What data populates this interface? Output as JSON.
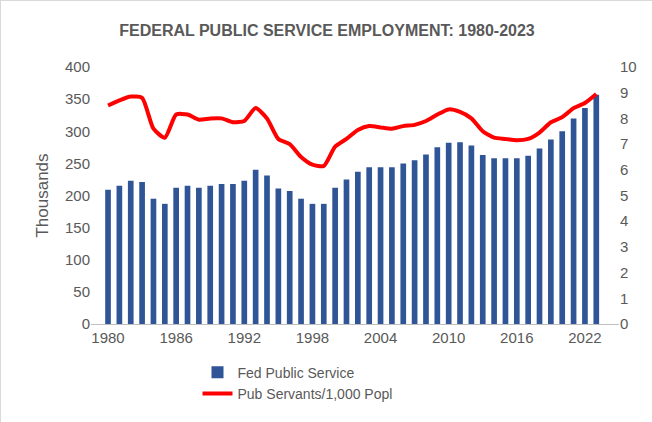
{
  "chart_data": {
    "type": "bar",
    "title": "FEDERAL PUBLIC SERVICE EMPLOYMENT: 1980-2023",
    "y_label": "Thousands",
    "x": [
      1980,
      1981,
      1982,
      1983,
      1984,
      1985,
      1986,
      1987,
      1988,
      1989,
      1990,
      1991,
      1992,
      1993,
      1994,
      1995,
      1996,
      1997,
      1998,
      1999,
      2000,
      2001,
      2002,
      2003,
      2004,
      2005,
      2006,
      2007,
      2008,
      2009,
      2010,
      2011,
      2012,
      2013,
      2014,
      2015,
      2016,
      2017,
      2018,
      2019,
      2020,
      2021,
      2022,
      2023
    ],
    "series": [
      {
        "name": "Fed Public Service",
        "type": "bar",
        "color": "#2f5597",
        "values": [
          209,
          215,
          223,
          221,
          195,
          187,
          212,
          215,
          212,
          215,
          218,
          218,
          223,
          240,
          231,
          211,
          207,
          195,
          187,
          187,
          212,
          225,
          237,
          244,
          244,
          244,
          250,
          255,
          264,
          275,
          282,
          283,
          278,
          263,
          258,
          258,
          258,
          262,
          273,
          287,
          300,
          320,
          336,
          357
        ]
      },
      {
        "name": "Pub Servants/1,000 Popl",
        "type": "line",
        "axis": "y2",
        "color": "#ff0000",
        "values": [
          8.5,
          8.7,
          8.85,
          8.8,
          7.6,
          7.25,
          8.15,
          8.15,
          7.95,
          8.0,
          8.0,
          7.85,
          7.9,
          8.4,
          8.0,
          7.2,
          7.0,
          6.5,
          6.2,
          6.15,
          6.9,
          7.2,
          7.55,
          7.7,
          7.65,
          7.6,
          7.7,
          7.75,
          7.9,
          8.15,
          8.35,
          8.25,
          8.0,
          7.5,
          7.25,
          7.2,
          7.15,
          7.2,
          7.45,
          7.85,
          8.05,
          8.4,
          8.6,
          8.95
        ]
      }
    ],
    "xlim": [
      1978.5,
      2025
    ],
    "xticks": [
      1980,
      1986,
      1992,
      1998,
      2004,
      2010,
      2016,
      2022
    ],
    "ylim": [
      0,
      400
    ],
    "yticks": [
      0,
      50,
      100,
      150,
      200,
      250,
      300,
      350,
      400
    ],
    "y2lim": [
      0,
      10
    ],
    "y2ticks": [
      0,
      1,
      2,
      3,
      4,
      5,
      6,
      7,
      8,
      9,
      10
    ],
    "grid": false,
    "legend": "bottom"
  }
}
